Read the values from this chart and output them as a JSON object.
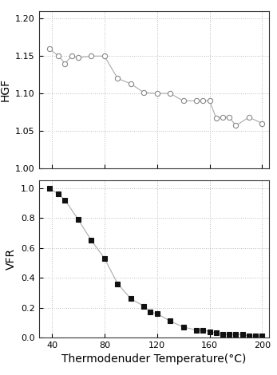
{
  "hgf_x": [
    38,
    45,
    50,
    55,
    60,
    70,
    80,
    90,
    100,
    110,
    120,
    130,
    140,
    150,
    155,
    160,
    165,
    170,
    175,
    180,
    190,
    200
  ],
  "hgf_y": [
    1.16,
    1.15,
    1.14,
    1.15,
    1.148,
    1.15,
    1.15,
    1.12,
    1.113,
    1.101,
    1.1,
    1.1,
    1.09,
    1.09,
    1.09,
    1.09,
    1.067,
    1.068,
    1.068,
    1.057,
    1.068,
    1.06
  ],
  "vfr_x": [
    38,
    45,
    50,
    60,
    70,
    80,
    90,
    100,
    110,
    115,
    120,
    130,
    140,
    150,
    155,
    160,
    165,
    170,
    175,
    180,
    185,
    190,
    195,
    200
  ],
  "vfr_y": [
    1.0,
    0.96,
    0.92,
    0.79,
    0.65,
    0.53,
    0.36,
    0.26,
    0.21,
    0.17,
    0.16,
    0.11,
    0.07,
    0.05,
    0.05,
    0.04,
    0.03,
    0.02,
    0.02,
    0.02,
    0.02,
    0.01,
    0.01,
    0.01
  ],
  "hgf_ylim": [
    1.0,
    1.21
  ],
  "hgf_yticks": [
    1.0,
    1.05,
    1.1,
    1.15,
    1.2
  ],
  "vfr_ylim": [
    0.0,
    1.05
  ],
  "vfr_yticks": [
    0.0,
    0.2,
    0.4,
    0.6,
    0.8,
    1.0
  ],
  "xlim": [
    30,
    205
  ],
  "xticks": [
    40,
    80,
    120,
    160,
    200
  ],
  "xlabel": "Thermodenuder Temperature(°C)",
  "ylabel_hgf": "HGF",
  "ylabel_vfr": "VFR",
  "line_color": "#aaaaaa",
  "hgf_marker_facecolor": "#ffffff",
  "hgf_marker_edgecolor": "#888888",
  "vfr_marker_color": "#111111",
  "grid_color": "#bbbbbb",
  "grid_style": ":",
  "background_color": "#ffffff",
  "tick_labelsize": 8,
  "ylabel_fontsize": 10,
  "xlabel_fontsize": 10
}
